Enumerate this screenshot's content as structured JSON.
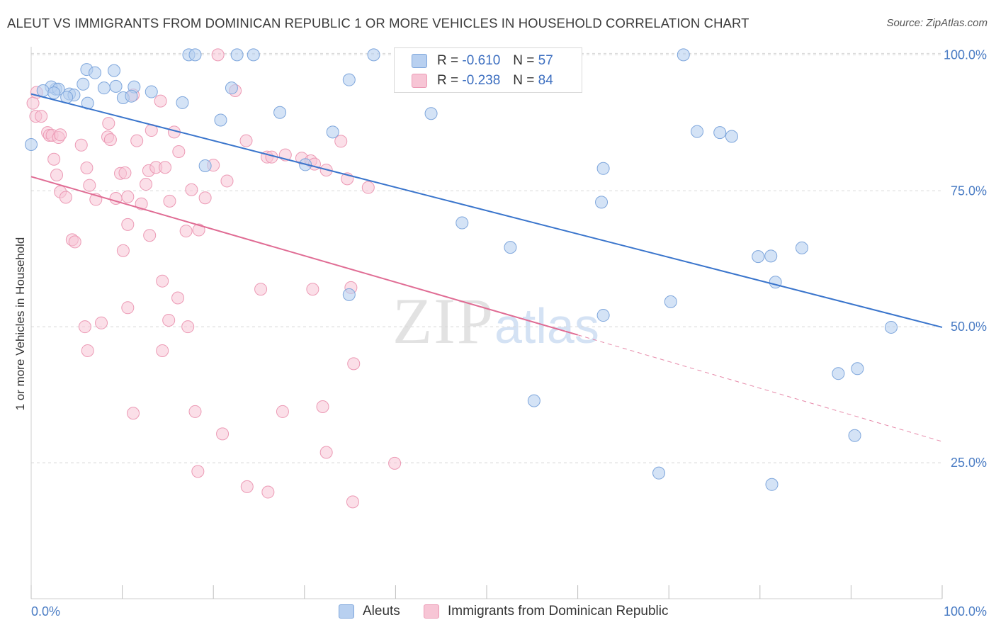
{
  "title": "ALEUT VS IMMIGRANTS FROM DOMINICAN REPUBLIC 1 OR MORE VEHICLES IN HOUSEHOLD CORRELATION CHART",
  "source": "Source: ZipAtlas.com",
  "watermark": {
    "zip": "ZIP",
    "atlas": "atlas"
  },
  "legend_top": [
    {
      "r_label": "R =",
      "r_value": "-0.610",
      "n_label": "N =",
      "n_value": "57"
    },
    {
      "r_label": "R =",
      "r_value": "-0.238",
      "n_label": "N =",
      "n_value": "84"
    }
  ],
  "legend_bottom": [
    "Aleuts",
    "Immigrants from Dominican Republic"
  ],
  "colors": {
    "aleut_fill": "#b8d0f0",
    "aleut_stroke": "#7ea6dc",
    "aleut_line": "#3a75cc",
    "dom_fill": "#f7c5d5",
    "dom_stroke": "#ec9ab5",
    "dom_line": "#e06c94",
    "grid": "#d8d8d8",
    "axis_label": "#4a7cc4"
  },
  "chart_data": {
    "type": "scatter",
    "title": "ALEUT VS IMMIGRANTS FROM DOMINICAN REPUBLIC 1 OR MORE VEHICLES IN HOUSEHOLD CORRELATION CHART",
    "xlabel": "",
    "ylabel": "1 or more Vehicles in Household",
    "xlim": [
      0,
      100
    ],
    "ylim": [
      0,
      102
    ],
    "x_tick_labels": [
      "0.0%",
      "100.0%"
    ],
    "y_ticks": [
      25,
      50,
      75,
      100
    ],
    "y_tick_labels": [
      "25.0%",
      "50.0%",
      "75.0%",
      "100.0%"
    ],
    "grid": "horizontal dashed",
    "legend_placement": "top-center and bottom",
    "series": [
      {
        "name": "Aleuts",
        "r": -0.61,
        "n": 57,
        "trend": {
          "x": [
            0,
            100
          ],
          "y": [
            92.8,
            49.9
          ]
        },
        "points": [
          [
            0.0,
            83.5
          ],
          [
            2.7,
            93.7
          ],
          [
            4.2,
            92.8
          ],
          [
            6.1,
            97.3
          ],
          [
            2.2,
            94.1
          ],
          [
            3.0,
            93.7
          ],
          [
            4.7,
            92.6
          ],
          [
            1.3,
            93.4
          ],
          [
            2.5,
            93.0
          ],
          [
            6.2,
            91.1
          ],
          [
            3.9,
            92.2
          ],
          [
            5.7,
            94.6
          ],
          [
            7.0,
            96.7
          ],
          [
            8.0,
            93.9
          ],
          [
            9.1,
            97.1
          ],
          [
            9.3,
            94.2
          ],
          [
            10.1,
            92.1
          ],
          [
            11.3,
            94.1
          ],
          [
            11.0,
            92.4
          ],
          [
            13.2,
            93.2
          ],
          [
            17.3,
            100.0
          ],
          [
            18.0,
            100.0
          ],
          [
            22.6,
            100.0
          ],
          [
            24.4,
            100.0
          ],
          [
            20.8,
            88.0
          ],
          [
            16.6,
            91.2
          ],
          [
            22.0,
            93.9
          ],
          [
            27.3,
            89.4
          ],
          [
            19.1,
            79.6
          ],
          [
            30.1,
            79.8
          ],
          [
            33.1,
            85.8
          ],
          [
            34.9,
            95.4
          ],
          [
            37.6,
            100.0
          ],
          [
            43.9,
            89.2
          ],
          [
            47.3,
            69.1
          ],
          [
            52.6,
            64.6
          ],
          [
            55.7,
            100.0
          ],
          [
            62.6,
            72.9
          ],
          [
            62.8,
            79.1
          ],
          [
            71.6,
            100.0
          ],
          [
            73.1,
            85.9
          ],
          [
            75.6,
            85.7
          ],
          [
            76.9,
            85.0
          ],
          [
            79.8,
            62.9
          ],
          [
            81.2,
            63.0
          ],
          [
            81.7,
            58.2
          ],
          [
            84.6,
            64.5
          ],
          [
            88.6,
            41.4
          ],
          [
            90.7,
            42.3
          ],
          [
            94.4,
            49.9
          ],
          [
            90.4,
            30.0
          ],
          [
            81.3,
            21.0
          ],
          [
            68.9,
            23.1
          ],
          [
            70.2,
            54.6
          ],
          [
            62.8,
            52.1
          ],
          [
            55.2,
            36.4
          ],
          [
            34.9,
            55.9
          ]
        ]
      },
      {
        "name": "Immigrants from Dominican Republic",
        "r": -0.238,
        "n": 84,
        "trend": {
          "x": [
            0,
            60
          ],
          "y": [
            77.6,
            48.5
          ]
        },
        "trend_extension": {
          "x": [
            60,
            100
          ],
          "y": [
            48.5,
            28.9
          ]
        },
        "points": [
          [
            0.2,
            91.1
          ],
          [
            0.5,
            88.7
          ],
          [
            0.6,
            93.1
          ],
          [
            1.1,
            88.7
          ],
          [
            1.8,
            85.7
          ],
          [
            2.0,
            85.2
          ],
          [
            2.3,
            85.2
          ],
          [
            3.0,
            84.8
          ],
          [
            3.2,
            85.3
          ],
          [
            2.5,
            80.8
          ],
          [
            2.8,
            77.9
          ],
          [
            3.2,
            74.8
          ],
          [
            3.8,
            73.8
          ],
          [
            4.5,
            66.0
          ],
          [
            4.8,
            65.6
          ],
          [
            5.5,
            83.4
          ],
          [
            6.1,
            79.2
          ],
          [
            6.4,
            76.0
          ],
          [
            7.1,
            73.4
          ],
          [
            8.4,
            84.9
          ],
          [
            8.5,
            87.4
          ],
          [
            8.7,
            84.4
          ],
          [
            9.3,
            73.6
          ],
          [
            9.8,
            78.2
          ],
          [
            10.3,
            78.3
          ],
          [
            10.6,
            73.9
          ],
          [
            10.1,
            64.0
          ],
          [
            10.6,
            68.8
          ],
          [
            11.2,
            92.6
          ],
          [
            11.6,
            84.2
          ],
          [
            12.1,
            72.6
          ],
          [
            12.6,
            76.2
          ],
          [
            12.9,
            78.7
          ],
          [
            13.0,
            66.8
          ],
          [
            13.2,
            86.1
          ],
          [
            13.7,
            79.3
          ],
          [
            14.2,
            91.5
          ],
          [
            14.7,
            79.3
          ],
          [
            15.2,
            73.1
          ],
          [
            15.7,
            85.8
          ],
          [
            16.2,
            82.2
          ],
          [
            17.0,
            67.6
          ],
          [
            17.6,
            75.2
          ],
          [
            18.4,
            67.8
          ],
          [
            19.1,
            73.7
          ],
          [
            20.0,
            79.7
          ],
          [
            20.5,
            100.0
          ],
          [
            21.5,
            76.8
          ],
          [
            22.4,
            93.4
          ],
          [
            23.6,
            84.2
          ],
          [
            25.9,
            81.2
          ],
          [
            26.4,
            81.2
          ],
          [
            27.9,
            81.6
          ],
          [
            29.7,
            81.0
          ],
          [
            30.7,
            80.5
          ],
          [
            31.1,
            79.9
          ],
          [
            32.4,
            78.8
          ],
          [
            34.0,
            84.1
          ],
          [
            34.7,
            77.2
          ],
          [
            37.0,
            75.6
          ],
          [
            14.4,
            58.4
          ],
          [
            16.1,
            55.3
          ],
          [
            15.1,
            51.2
          ],
          [
            17.2,
            50.0
          ],
          [
            14.4,
            45.6
          ],
          [
            10.6,
            53.5
          ],
          [
            7.7,
            50.7
          ],
          [
            5.9,
            50.0
          ],
          [
            6.2,
            45.6
          ],
          [
            25.2,
            56.9
          ],
          [
            30.9,
            56.9
          ],
          [
            35.1,
            57.2
          ],
          [
            11.2,
            34.1
          ],
          [
            18.0,
            34.4
          ],
          [
            21.0,
            30.3
          ],
          [
            27.6,
            34.4
          ],
          [
            32.0,
            35.3
          ],
          [
            35.4,
            43.2
          ],
          [
            18.3,
            23.4
          ],
          [
            23.7,
            20.6
          ],
          [
            26.0,
            19.6
          ],
          [
            32.4,
            26.9
          ],
          [
            39.9,
            24.9
          ],
          [
            35.3,
            17.8
          ]
        ]
      }
    ]
  }
}
